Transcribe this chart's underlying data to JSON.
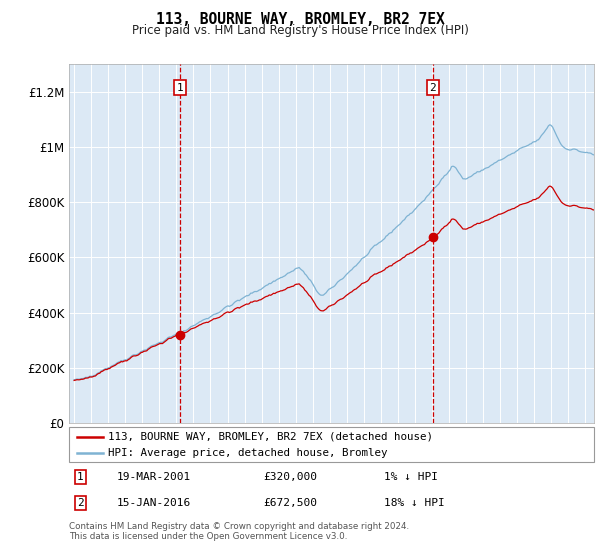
{
  "title": "113, BOURNE WAY, BROMLEY, BR2 7EX",
  "subtitle": "Price paid vs. HM Land Registry's House Price Index (HPI)",
  "background_color": "#dce9f5",
  "hpi_color": "#7fb3d3",
  "property_color": "#cc0000",
  "vline_color": "#cc0000",
  "sale1_date_x": 2001.22,
  "sale1_price": 320000,
  "sale2_date_x": 2016.04,
  "sale2_price": 672500,
  "ylim": [
    0,
    1300000
  ],
  "xlim_start": 1994.7,
  "xlim_end": 2025.5,
  "ylabel_ticks": [
    "£0",
    "£200K",
    "£400K",
    "£600K",
    "£800K",
    "£1M",
    "£1.2M"
  ],
  "ylabel_values": [
    0,
    200000,
    400000,
    600000,
    800000,
    1000000,
    1200000
  ],
  "legend_property": "113, BOURNE WAY, BROMLEY, BR2 7EX (detached house)",
  "legend_hpi": "HPI: Average price, detached house, Bromley",
  "note1_date": "19-MAR-2001",
  "note1_price": "£320,000",
  "note1_hpi": "1% ↓ HPI",
  "note2_date": "15-JAN-2016",
  "note2_price": "£672,500",
  "note2_hpi": "18% ↓ HPI",
  "footer": "Contains HM Land Registry data © Crown copyright and database right 2024.\nThis data is licensed under the Open Government Licence v3.0."
}
